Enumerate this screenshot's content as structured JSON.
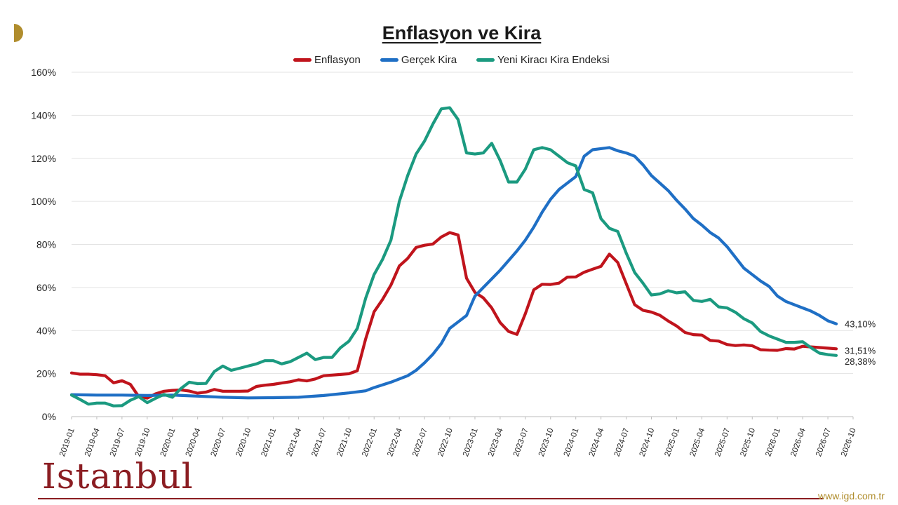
{
  "chart_data": {
    "type": "line",
    "title": "Enflasyon ve Kira",
    "xlabel": "",
    "ylabel": "",
    "legend_position": "top",
    "grid": true,
    "ylim": [
      0,
      160
    ],
    "y_ticks": [
      "0%",
      "20%",
      "40%",
      "60%",
      "80%",
      "100%",
      "120%",
      "140%",
      "160%"
    ],
    "x_start": "2019-01",
    "x_end": "2026-10",
    "x_ticks": [
      "2019-01",
      "2019-04",
      "2019-07",
      "2019-10",
      "2020-01",
      "2020-04",
      "2020-07",
      "2020-10",
      "2021-01",
      "2021-04",
      "2021-07",
      "2021-10",
      "2022-01",
      "2022-04",
      "2022-07",
      "2022-10",
      "2023-01",
      "2023-04",
      "2023-07",
      "2023-10",
      "2024-01",
      "2024-04",
      "2024-07",
      "2024-10",
      "2025-01",
      "2025-04",
      "2025-07",
      "2025-10",
      "2026-01",
      "2026-04",
      "2026-07",
      "2026-10"
    ],
    "series": [
      {
        "name": "Enflasyon",
        "color": "#c0141c",
        "end_label": "31,51%",
        "points": [
          [
            "2019-01",
            20.3
          ],
          [
            "2019-02",
            19.7
          ],
          [
            "2019-03",
            19.7
          ],
          [
            "2019-04",
            19.5
          ],
          [
            "2019-05",
            19.0
          ],
          [
            "2019-06",
            15.7
          ],
          [
            "2019-07",
            16.7
          ],
          [
            "2019-08",
            15.0
          ],
          [
            "2019-09",
            9.3
          ],
          [
            "2019-10",
            8.6
          ],
          [
            "2019-11",
            10.6
          ],
          [
            "2019-12",
            11.8
          ],
          [
            "2020-01",
            12.2
          ],
          [
            "2020-02",
            12.4
          ],
          [
            "2020-03",
            11.9
          ],
          [
            "2020-04",
            10.9
          ],
          [
            "2020-05",
            11.4
          ],
          [
            "2020-06",
            12.6
          ],
          [
            "2020-07",
            11.8
          ],
          [
            "2020-08",
            11.8
          ],
          [
            "2020-09",
            11.8
          ],
          [
            "2020-10",
            11.9
          ],
          [
            "2020-11",
            14.0
          ],
          [
            "2020-12",
            14.6
          ],
          [
            "2021-01",
            15.0
          ],
          [
            "2021-02",
            15.6
          ],
          [
            "2021-03",
            16.2
          ],
          [
            "2021-04",
            17.1
          ],
          [
            "2021-05",
            16.6
          ],
          [
            "2021-06",
            17.5
          ],
          [
            "2021-07",
            19.0
          ],
          [
            "2021-08",
            19.3
          ],
          [
            "2021-09",
            19.6
          ],
          [
            "2021-10",
            19.9
          ],
          [
            "2021-11",
            21.3
          ],
          [
            "2021-12",
            36.1
          ],
          [
            "2022-01",
            48.7
          ],
          [
            "2022-02",
            54.4
          ],
          [
            "2022-03",
            61.1
          ],
          [
            "2022-04",
            70.0
          ],
          [
            "2022-05",
            73.5
          ],
          [
            "2022-06",
            78.6
          ],
          [
            "2022-07",
            79.6
          ],
          [
            "2022-08",
            80.2
          ],
          [
            "2022-09",
            83.5
          ],
          [
            "2022-10",
            85.5
          ],
          [
            "2022-11",
            84.4
          ],
          [
            "2022-12",
            64.3
          ],
          [
            "2023-01",
            57.7
          ],
          [
            "2023-02",
            55.2
          ],
          [
            "2023-03",
            50.5
          ],
          [
            "2023-04",
            43.7
          ],
          [
            "2023-05",
            39.6
          ],
          [
            "2023-06",
            38.2
          ],
          [
            "2023-07",
            47.8
          ],
          [
            "2023-08",
            58.9
          ],
          [
            "2023-09",
            61.5
          ],
          [
            "2023-10",
            61.4
          ],
          [
            "2023-11",
            62.0
          ],
          [
            "2023-12",
            64.8
          ],
          [
            "2024-01",
            64.9
          ],
          [
            "2024-02",
            67.1
          ],
          [
            "2024-03",
            68.5
          ],
          [
            "2024-04",
            69.8
          ],
          [
            "2024-05",
            75.5
          ],
          [
            "2024-06",
            71.6
          ],
          [
            "2024-07",
            61.8
          ],
          [
            "2024-08",
            52.0
          ],
          [
            "2024-09",
            49.4
          ],
          [
            "2024-10",
            48.6
          ],
          [
            "2024-11",
            47.1
          ],
          [
            "2024-12",
            44.4
          ],
          [
            "2025-01",
            42.1
          ],
          [
            "2025-02",
            39.1
          ],
          [
            "2025-03",
            38.1
          ],
          [
            "2025-04",
            37.9
          ],
          [
            "2025-05",
            35.4
          ],
          [
            "2025-06",
            35.1
          ],
          [
            "2025-07",
            33.5
          ],
          [
            "2025-08",
            33.0
          ],
          [
            "2025-09",
            33.3
          ],
          [
            "2025-10",
            32.9
          ],
          [
            "2025-11",
            31.1
          ],
          [
            "2025-12",
            30.9
          ],
          [
            "2026-01",
            30.8
          ],
          [
            "2026-02",
            31.6
          ],
          [
            "2026-03",
            31.4
          ],
          [
            "2026-04",
            32.7
          ],
          [
            "2026-05",
            32.4
          ],
          [
            "2026-06",
            32.1
          ],
          [
            "2026-07",
            31.8
          ],
          [
            "2026-08",
            31.5
          ]
        ]
      },
      {
        "name": "Gerçek Kira",
        "color": "#1f6fc5",
        "end_label": "43,10%",
        "points": [
          [
            "2019-01",
            10.2
          ],
          [
            "2019-04",
            10.0
          ],
          [
            "2019-07",
            10.0
          ],
          [
            "2019-10",
            9.8
          ],
          [
            "2020-01",
            10.0
          ],
          [
            "2020-04",
            9.5
          ],
          [
            "2020-07",
            9.0
          ],
          [
            "2020-10",
            8.7
          ],
          [
            "2021-01",
            8.8
          ],
          [
            "2021-04",
            9.0
          ],
          [
            "2021-07",
            9.8
          ],
          [
            "2021-10",
            11.0
          ],
          [
            "2021-12",
            12.0
          ],
          [
            "2022-01",
            13.5
          ],
          [
            "2022-03",
            16.0
          ],
          [
            "2022-05",
            19.0
          ],
          [
            "2022-06",
            21.5
          ],
          [
            "2022-07",
            25.0
          ],
          [
            "2022-08",
            29.0
          ],
          [
            "2022-09",
            34.0
          ],
          [
            "2022-10",
            41.0
          ],
          [
            "2022-11",
            44.0
          ],
          [
            "2022-12",
            47.0
          ],
          [
            "2023-01",
            56.0
          ],
          [
            "2023-02",
            60.0
          ],
          [
            "2023-03",
            64.0
          ],
          [
            "2023-04",
            68.0
          ],
          [
            "2023-05",
            72.5
          ],
          [
            "2023-06",
            77.0
          ],
          [
            "2023-07",
            82.0
          ],
          [
            "2023-08",
            88.0
          ],
          [
            "2023-09",
            95.0
          ],
          [
            "2023-10",
            101.0
          ],
          [
            "2023-11",
            105.5
          ],
          [
            "2023-12",
            108.5
          ],
          [
            "2024-01",
            111.5
          ],
          [
            "2024-02",
            121.0
          ],
          [
            "2024-03",
            124.0
          ],
          [
            "2024-04",
            124.5
          ],
          [
            "2024-05",
            125.0
          ],
          [
            "2024-06",
            123.5
          ],
          [
            "2024-07",
            122.5
          ],
          [
            "2024-08",
            121.0
          ],
          [
            "2024-09",
            117.0
          ],
          [
            "2024-10",
            112.0
          ],
          [
            "2024-11",
            108.5
          ],
          [
            "2024-12",
            105.0
          ],
          [
            "2025-01",
            100.5
          ],
          [
            "2025-02",
            96.5
          ],
          [
            "2025-03",
            92.0
          ],
          [
            "2025-04",
            89.0
          ],
          [
            "2025-05",
            85.5
          ],
          [
            "2025-06",
            83.0
          ],
          [
            "2025-07",
            79.0
          ],
          [
            "2025-08",
            74.0
          ],
          [
            "2025-09",
            69.0
          ],
          [
            "2025-10",
            66.0
          ],
          [
            "2025-11",
            63.0
          ],
          [
            "2025-12",
            60.5
          ],
          [
            "2026-01",
            56.0
          ],
          [
            "2026-02",
            53.5
          ],
          [
            "2026-03",
            52.0
          ],
          [
            "2026-04",
            50.5
          ],
          [
            "2026-05",
            49.0
          ],
          [
            "2026-06",
            47.0
          ],
          [
            "2026-07",
            44.5
          ],
          [
            "2026-08",
            43.1
          ]
        ]
      },
      {
        "name": "Yeni Kiracı Kira Endeksi",
        "color": "#1b9a80",
        "end_label": "28,38%",
        "points": [
          [
            "2019-01",
            10.0
          ],
          [
            "2019-02",
            8.0
          ],
          [
            "2019-03",
            5.8
          ],
          [
            "2019-04",
            6.3
          ],
          [
            "2019-05",
            6.3
          ],
          [
            "2019-06",
            5.0
          ],
          [
            "2019-07",
            5.1
          ],
          [
            "2019-08",
            7.6
          ],
          [
            "2019-09",
            9.3
          ],
          [
            "2019-10",
            6.5
          ],
          [
            "2019-11",
            8.5
          ],
          [
            "2019-12",
            10.3
          ],
          [
            "2020-01",
            9.0
          ],
          [
            "2020-02",
            13.0
          ],
          [
            "2020-03",
            16.0
          ],
          [
            "2020-04",
            15.3
          ],
          [
            "2020-05",
            15.4
          ],
          [
            "2020-06",
            21.0
          ],
          [
            "2020-07",
            23.5
          ],
          [
            "2020-08",
            21.5
          ],
          [
            "2020-09",
            22.5
          ],
          [
            "2020-10",
            23.5
          ],
          [
            "2020-11",
            24.5
          ],
          [
            "2020-12",
            26.0
          ],
          [
            "2021-01",
            26.0
          ],
          [
            "2021-02",
            24.5
          ],
          [
            "2021-03",
            25.5
          ],
          [
            "2021-04",
            27.5
          ],
          [
            "2021-05",
            29.5
          ],
          [
            "2021-06",
            26.5
          ],
          [
            "2021-07",
            27.5
          ],
          [
            "2021-08",
            27.5
          ],
          [
            "2021-09",
            32.0
          ],
          [
            "2021-10",
            35.0
          ],
          [
            "2021-11",
            41.0
          ],
          [
            "2021-12",
            55.0
          ],
          [
            "2022-01",
            66.0
          ],
          [
            "2022-02",
            73.0
          ],
          [
            "2022-03",
            82.0
          ],
          [
            "2022-04",
            100.0
          ],
          [
            "2022-05",
            112.0
          ],
          [
            "2022-06",
            122.0
          ],
          [
            "2022-07",
            128.0
          ],
          [
            "2022-08",
            136.0
          ],
          [
            "2022-09",
            143.0
          ],
          [
            "2022-10",
            143.5
          ],
          [
            "2022-11",
            138.0
          ],
          [
            "2022-12",
            122.5
          ],
          [
            "2023-01",
            122.0
          ],
          [
            "2023-02",
            122.5
          ],
          [
            "2023-03",
            127.0
          ],
          [
            "2023-04",
            119.0
          ],
          [
            "2023-05",
            109.0
          ],
          [
            "2023-06",
            109.0
          ],
          [
            "2023-07",
            115.0
          ],
          [
            "2023-08",
            124.0
          ],
          [
            "2023-09",
            125.0
          ],
          [
            "2023-10",
            124.0
          ],
          [
            "2023-11",
            121.0
          ],
          [
            "2023-12",
            118.0
          ],
          [
            "2024-01",
            116.5
          ],
          [
            "2024-02",
            105.5
          ],
          [
            "2024-03",
            104.0
          ],
          [
            "2024-04",
            92.0
          ],
          [
            "2024-05",
            87.5
          ],
          [
            "2024-06",
            86.0
          ],
          [
            "2024-07",
            76.0
          ],
          [
            "2024-08",
            67.0
          ],
          [
            "2024-09",
            62.0
          ],
          [
            "2024-10",
            56.5
          ],
          [
            "2024-11",
            57.0
          ],
          [
            "2024-12",
            58.5
          ],
          [
            "2025-01",
            57.5
          ],
          [
            "2025-02",
            58.0
          ],
          [
            "2025-03",
            54.0
          ],
          [
            "2025-04",
            53.5
          ],
          [
            "2025-05",
            54.5
          ],
          [
            "2025-06",
            51.0
          ],
          [
            "2025-07",
            50.5
          ],
          [
            "2025-08",
            48.5
          ],
          [
            "2025-09",
            45.5
          ],
          [
            "2025-10",
            43.5
          ],
          [
            "2025-11",
            39.5
          ],
          [
            "2025-12",
            37.5
          ],
          [
            "2026-01",
            36.0
          ],
          [
            "2026-02",
            34.5
          ],
          [
            "2026-03",
            34.5
          ],
          [
            "2026-04",
            34.8
          ],
          [
            "2026-05",
            32.0
          ],
          [
            "2026-06",
            29.5
          ],
          [
            "2026-07",
            28.8
          ],
          [
            "2026-08",
            28.4
          ]
        ]
      }
    ]
  },
  "branding": {
    "left_logo": "Istanbul",
    "right_logo": "www.igd.com.tr"
  }
}
